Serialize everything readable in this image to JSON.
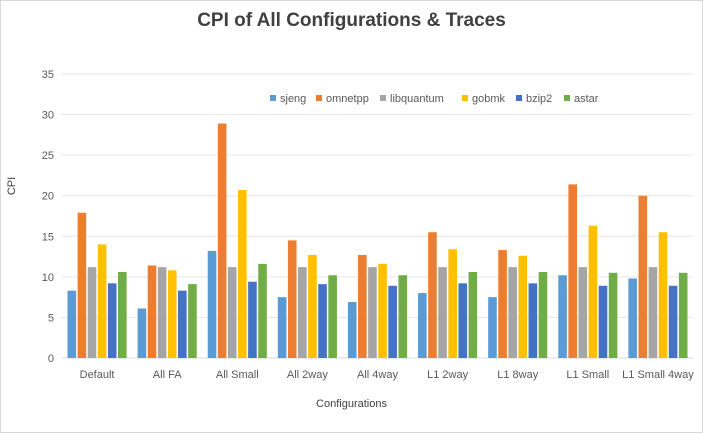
{
  "chart_data": {
    "type": "bar",
    "title": "CPI of All Configurations  & Traces",
    "xlabel": "Configurations",
    "ylabel": "CPI",
    "ylim": [
      0,
      35
    ],
    "yticks": [
      0,
      5,
      10,
      15,
      20,
      25,
      30,
      35
    ],
    "grid": true,
    "legend_position": "top-right",
    "categories": [
      "Default",
      "All FA",
      "All Small",
      "All 2way",
      "All 4way",
      "L1 2way",
      "L1 8way",
      "L1 Small",
      "L1 Small 4way"
    ],
    "series": [
      {
        "name": "sjeng",
        "color": "#5b9bd5",
        "values": [
          8.3,
          6.1,
          13.2,
          7.5,
          6.9,
          8.0,
          7.5,
          10.2,
          9.8
        ]
      },
      {
        "name": "omnetpp",
        "color": "#ed7d31",
        "values": [
          17.9,
          11.4,
          28.9,
          14.5,
          12.7,
          15.5,
          13.3,
          21.4,
          20.0
        ]
      },
      {
        "name": "libquantum",
        "color": "#a5a5a5",
        "values": [
          11.2,
          11.2,
          11.2,
          11.2,
          11.2,
          11.2,
          11.2,
          11.2,
          11.2
        ]
      },
      {
        "name": "gobmk",
        "color": "#ffc000",
        "values": [
          14.0,
          10.8,
          20.7,
          12.7,
          11.6,
          13.4,
          12.6,
          16.3,
          15.5
        ]
      },
      {
        "name": "bzip2",
        "color": "#4472c4",
        "values": [
          9.2,
          8.3,
          9.4,
          9.1,
          8.9,
          9.2,
          9.2,
          8.9,
          8.9
        ]
      },
      {
        "name": "astar",
        "color": "#70ad47",
        "values": [
          10.6,
          9.1,
          11.6,
          10.2,
          10.2,
          10.6,
          10.6,
          10.5,
          10.5
        ]
      }
    ]
  }
}
